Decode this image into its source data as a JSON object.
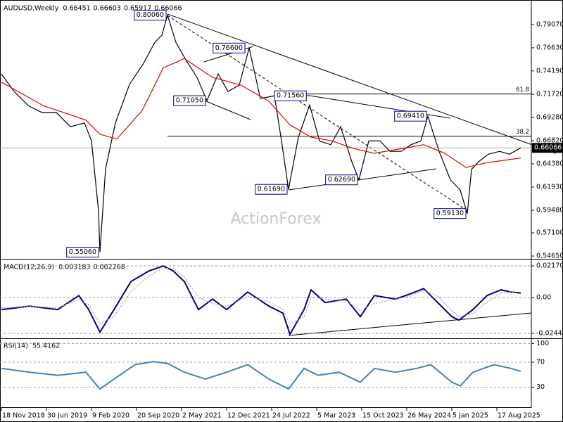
{
  "chart_data": [
    {
      "type": "line",
      "title": "AUDUSD,Weekly",
      "ohlc": [
        0.66451,
        0.66603,
        0.65917,
        0.66066
      ],
      "watermark": "ActionForex",
      "xlim": [
        0,
        376
      ],
      "ylim": [
        0.5443,
        0.8145
      ],
      "grid": false,
      "yticks": [
        {
          "value": 0.7907,
          "label": "0.79070"
        },
        {
          "value": 0.7663,
          "label": "0.76630"
        },
        {
          "value": 0.7419,
          "label": "0.74190"
        },
        {
          "value": 0.7172,
          "label": "0.71720"
        },
        {
          "value": 0.6928,
          "label": "0.69280"
        },
        {
          "value": 0.6682,
          "label": "0.66820"
        },
        {
          "value": 0.6438,
          "label": "0.64380"
        },
        {
          "value": 0.6193,
          "label": "0.61930"
        },
        {
          "value": 0.5948,
          "label": "0.59480"
        },
        {
          "value": 0.571,
          "label": "0.57100"
        },
        {
          "value": 0.5465,
          "label": "0.54650"
        }
      ],
      "series": [
        {
          "color": "#000000",
          "x": [
            0,
            9,
            19,
            29,
            39,
            49,
            59,
            64,
            69,
            70,
            74,
            81,
            91,
            101,
            109,
            114,
            118,
            124,
            131,
            139,
            146,
            154,
            161,
            169,
            176,
            184,
            194,
            199,
            204,
            211,
            219,
            226,
            234,
            241,
            249,
            254,
            261,
            269,
            276,
            284,
            291,
            298,
            303,
            311,
            319,
            326,
            331,
            334,
            339,
            346,
            354,
            361,
            369
          ],
          "values": [
            0.7387,
            0.7202,
            0.7053,
            0.6979,
            0.698,
            0.683,
            0.687,
            0.668,
            0.594,
            0.5506,
            0.6385,
            0.687,
            0.7276,
            0.75,
            0.772,
            0.7796,
            0.8006,
            0.772,
            0.7536,
            0.735,
            0.7105,
            0.7387,
            0.72,
            0.727,
            0.766,
            0.7127,
            0.7156,
            0.668,
            0.6169,
            0.672,
            0.706,
            0.668,
            0.664,
            0.683,
            0.646,
            0.6269,
            0.668,
            0.668,
            0.657,
            0.657,
            0.664,
            0.668,
            0.6941,
            0.657,
            0.627,
            0.616,
            0.5913,
            0.638,
            0.646,
            0.654,
            0.657,
            0.654,
            0.66066
          ]
        },
        {
          "color": "#e00000",
          "x": [
            0,
            30,
            60,
            70,
            82,
            100,
            115,
            130,
            150,
            170,
            190,
            205,
            220,
            235,
            250,
            265,
            285,
            300,
            315,
            330,
            345,
            369
          ],
          "values": [
            0.73,
            0.705,
            0.69,
            0.675,
            0.67,
            0.7,
            0.745,
            0.755,
            0.735,
            0.727,
            0.71,
            0.685,
            0.672,
            0.668,
            0.66,
            0.655,
            0.66,
            0.664,
            0.655,
            0.64,
            0.645,
            0.65
          ]
        }
      ],
      "annotations": [
        {
          "x": 118,
          "value": 0.8006,
          "label": "0.80060"
        },
        {
          "x": 176,
          "value": 0.766,
          "label": "0.76600"
        },
        {
          "x": 146,
          "value": 0.7105,
          "label": "0.71050"
        },
        {
          "x": 194,
          "value": 0.7156,
          "label": "0.71560"
        },
        {
          "x": 303,
          "value": 0.6941,
          "label": "0.69410"
        },
        {
          "x": 204,
          "value": 0.6169,
          "label": "0.61690"
        },
        {
          "x": 254,
          "value": 0.6269,
          "label": "0.62690"
        },
        {
          "x": 331,
          "value": 0.5913,
          "label": "0.59130"
        },
        {
          "x": 70,
          "value": 0.5506,
          "label": "0.55060"
        }
      ],
      "fib_levels": [
        {
          "label": "61.8",
          "value": 0.7175
        },
        {
          "label": "38.2",
          "value": 0.673
        }
      ]
    },
    {
      "type": "line",
      "title": "MACD(12,26,9)",
      "current": [
        0.003183,
        0.002268
      ],
      "xlim": [
        0,
        376
      ],
      "ylim": [
        -0.02733,
        0.02507
      ],
      "grid": true,
      "yticks": [
        0.021701,
        {
          "value": 0,
          "label": "0.00"
        },
        -0.024445
      ],
      "series": [
        {
          "color": "#00008b",
          "x": [
            0,
            20,
            40,
            55,
            62,
            70,
            80,
            92,
            105,
            115,
            122,
            130,
            140,
            150,
            160,
            175,
            190,
            200,
            205,
            215,
            220,
            230,
            245,
            255,
            265,
            280,
            290,
            300,
            310,
            320,
            325,
            335,
            345,
            355,
            362,
            369
          ],
          "values": [
            -0.0082,
            -0.0058,
            -0.0082,
            0.0014,
            -0.0082,
            -0.0236,
            -0.0082,
            0.011,
            0.0183,
            0.0216,
            0.0183,
            0.011,
            -0.0082,
            -0.001,
            -0.0082,
            0.0038,
            -0.0058,
            -0.0106,
            -0.025,
            -0.0082,
            0.0053,
            -0.0034,
            -0.001,
            -0.013,
            0.0014,
            -0.001,
            0.0024,
            0.0062,
            -0.0034,
            -0.013,
            -0.0154,
            -0.0082,
            0.0014,
            0.0053,
            0.0038,
            0.003183
          ]
        },
        {
          "color": "#c89090",
          "x": [
            0,
            20,
            40,
            55,
            62,
            70,
            80,
            92,
            105,
            115,
            122,
            130,
            140,
            150,
            160,
            175,
            190,
            200,
            205,
            215,
            220,
            230,
            245,
            255,
            265,
            280,
            290,
            300,
            310,
            320,
            325,
            335,
            345,
            355,
            362,
            369
          ],
          "values": [
            -0.007,
            -0.006,
            -0.007,
            -0.001,
            -0.005,
            -0.018,
            -0.013,
            0.004,
            0.015,
            0.02,
            0.02,
            0.014,
            0,
            -0.004,
            -0.006,
            0.001,
            -0.003,
            -0.008,
            -0.018,
            -0.013,
            0,
            -0.001,
            -0.002,
            -0.009,
            -0.004,
            -0.001,
            0.001,
            0.005,
            0.001,
            -0.009,
            -0.013,
            -0.011,
            -0.003,
            0.003,
            0.004,
            0.002268
          ]
        }
      ]
    },
    {
      "type": "line",
      "title": "RSI(14)",
      "current": 55.4162,
      "xlim": [
        0,
        376
      ],
      "ylim": [
        -1,
        106
      ],
      "grid": true,
      "yticks": [
        100,
        70,
        30
      ],
      "xticks": [
        {
          "value": 0,
          "label": "18 Nov 2018"
        },
        {
          "value": 32,
          "label": "30 Jun 2019"
        },
        {
          "value": 64,
          "label": "9 Feb 2020"
        },
        {
          "value": 96,
          "label": "20 Sep 2020"
        },
        {
          "value": 128,
          "label": "2 May 2021"
        },
        {
          "value": 160,
          "label": "12 Dec 2021"
        },
        {
          "value": 192,
          "label": "24 Jul 2022"
        },
        {
          "value": 224,
          "label": "5 Mar 2023"
        },
        {
          "value": 256,
          "label": "15 Oct 2023"
        },
        {
          "value": 288,
          "label": "26 May 2024"
        },
        {
          "value": 320,
          "label": "5 Jan 2025"
        },
        {
          "value": 352,
          "label": "17 Aug 2025"
        }
      ],
      "series": [
        {
          "color": "#4682b4",
          "x": [
            0,
            20,
            40,
            60,
            70,
            80,
            95,
            108,
            118,
            130,
            145,
            160,
            175,
            190,
            204,
            215,
            225,
            240,
            255,
            265,
            280,
            295,
            305,
            320,
            326,
            335,
            350,
            362,
            369
          ],
          "values": [
            60,
            54,
            49,
            54,
            27,
            43,
            66,
            71,
            68,
            54,
            43,
            54,
            66,
            43,
            27,
            60,
            49,
            54,
            38,
            60,
            54,
            60,
            66,
            38,
            32,
            54,
            66,
            60,
            55.4162
          ]
        }
      ]
    }
  ]
}
